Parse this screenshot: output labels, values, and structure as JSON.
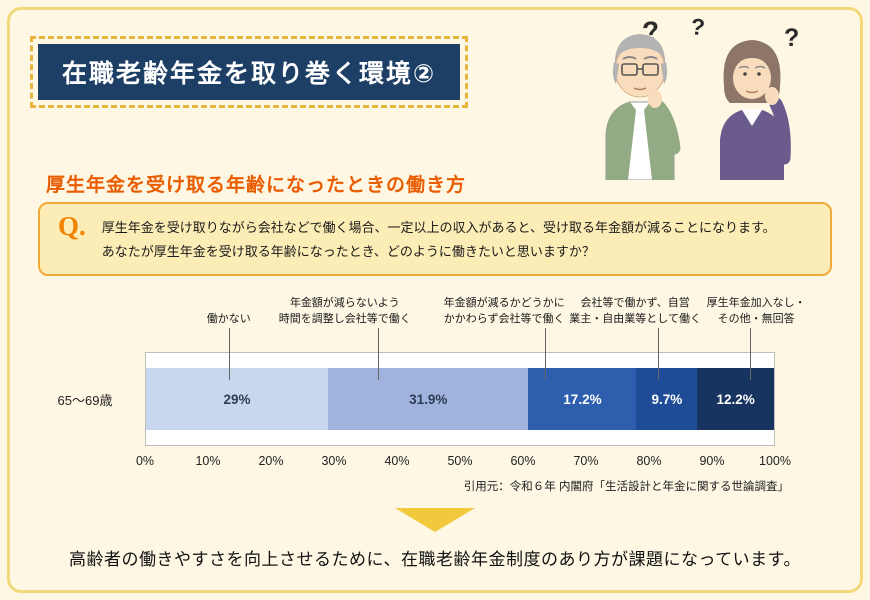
{
  "page": {
    "title": "在職老齢年金を取り巻く環境②",
    "subtitle": "厚生年金を受け取る年齢になったときの働き方",
    "question": {
      "label": "Q.",
      "line1": "厚生年金を受け取りながら会社などで働く場合、一定以上の収入があると、受け取る年金額が減ることになります。",
      "line2": "あなたが厚生年金を受け取る年齢になったとき、どのように働きたいと思いますか？"
    },
    "source": "引用元：令和６年 内閣府「生活設計と年金に関する世論調査」",
    "conclusion": "高齢者の働きやすさを向上させるために、在職老齢年金制度のあり方が課題になっています。"
  },
  "icons": {
    "question_mark": "?"
  },
  "colors": {
    "background": "#fdf7e4",
    "frame_border": "#f3d97c",
    "title_bg": "#1d3f66",
    "title_dash": "#e9b53e",
    "accent_orange": "#ea5c00",
    "q_label_orange": "#f08300",
    "qbox_bg": "#fcecb5",
    "qbox_border": "#f2a93b",
    "arrow": "#f2c93d"
  },
  "chart_data": {
    "type": "bar",
    "subtype": "horizontal-stacked",
    "category": "65〜69歳",
    "xlim": [
      0,
      100
    ],
    "grid": false,
    "x_ticks": [
      "0%",
      "10%",
      "20%",
      "30%",
      "40%",
      "50%",
      "60%",
      "70%",
      "80%",
      "90%",
      "100%"
    ],
    "series": [
      {
        "label": "働かない",
        "value": 29,
        "display": "29%",
        "color": "#c9d7ee",
        "text_color": "#2d3c55",
        "label_x": 13.3,
        "leader_x": 13.3
      },
      {
        "label": "年金額が減らないよう\n時間を調整し会社等で働く",
        "value": 31.9,
        "display": "31.9%",
        "color": "#9fb3de",
        "text_color": "#2d3c55",
        "label_x": 31.7,
        "leader_x": 37
      },
      {
        "label": "年金額が減るかどうかに\nかかわらず会社等で働く",
        "value": 17.2,
        "display": "17.2%",
        "color": "#2d5fae",
        "text_color": "#ffffff",
        "label_x": 57,
        "leader_x": 63.5
      },
      {
        "label": "会社等で働かず、自営\n業主・自由業等として働く",
        "value": 9.7,
        "display": "9.7%",
        "color": "#1e4c97",
        "text_color": "#ffffff",
        "label_x": 77.8,
        "leader_x": 81.5
      },
      {
        "label": "厚生年金加入なし・\nその他・無回答",
        "value": 12.2,
        "display": "12.2%",
        "color": "#16345f",
        "text_color": "#ffffff",
        "label_x": 97,
        "leader_x": 96
      }
    ]
  }
}
